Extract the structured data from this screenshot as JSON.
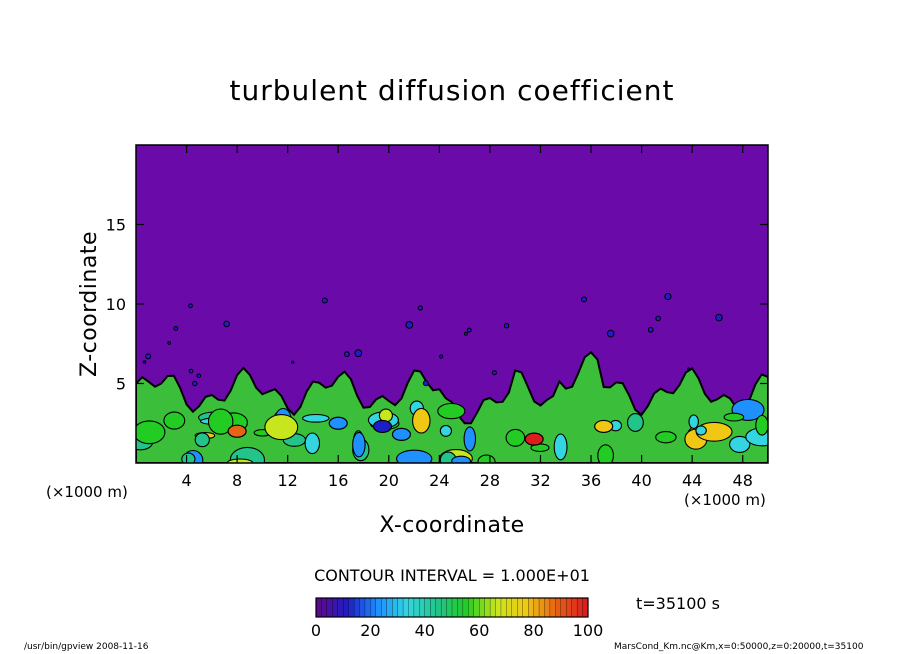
{
  "chart_data": {
    "type": "contour",
    "title": "turbulent diffusion coefficient",
    "xlabel": "X-coordinate",
    "ylabel": "Z-coordinate",
    "x_unit": "(×1000 m)",
    "y_unit": "(×1000 m)",
    "xlim": [
      0,
      50
    ],
    "ylim": [
      0,
      20
    ],
    "x_ticks": [
      4,
      8,
      12,
      16,
      20,
      24,
      28,
      32,
      36,
      40,
      44,
      48
    ],
    "y_ticks": [
      5,
      10,
      15
    ],
    "contour_interval": "CONTOUR INTERVAL = 1.000E+01",
    "time": "t=35100 s",
    "colorbar": {
      "min": 0,
      "max": 100,
      "ticks": [
        0,
        20,
        40,
        60,
        80,
        100
      ],
      "colors": [
        "#5a0a8c",
        "#1e1ec8",
        "#1e90ff",
        "#33d6e0",
        "#22c48a",
        "#22cc22",
        "#c8e61e",
        "#f0c814",
        "#e66414",
        "#dc1e1e"
      ]
    },
    "background_value": 0,
    "turbulent_layer_top_approx": 4.5
  },
  "footer": {
    "left": "/usr/bin/gpview   2008-11-16",
    "right": "MarsCond_Km.nc@Km,x=0:50000,z=0:20000,t=35100"
  }
}
